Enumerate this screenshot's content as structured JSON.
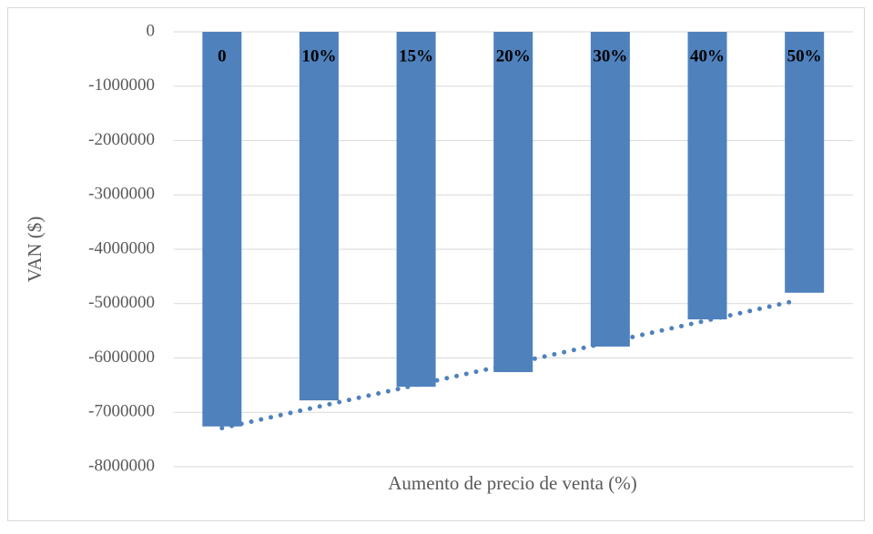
{
  "chart_data": {
    "type": "bar",
    "x_label": "Aumento de precio de venta (%)",
    "y_label": "VAN ($)",
    "categories": [
      "0",
      "10%",
      "15%",
      "20%",
      "30%",
      "40%",
      "50%"
    ],
    "values": [
      -7260000,
      -6780000,
      -6530000,
      -6260000,
      -5790000,
      -5290000,
      -4800000
    ],
    "color": "#4f81bd",
    "trendline": "linear",
    "ylim": [
      -8000000,
      0
    ],
    "yticks": [
      0,
      -1000000,
      -2000000,
      -3000000,
      -4000000,
      -5000000,
      -6000000,
      -7000000,
      -8000000
    ],
    "grid": true
  }
}
